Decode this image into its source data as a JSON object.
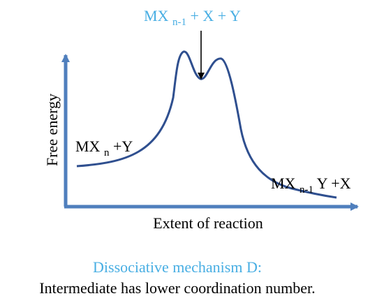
{
  "colors": {
    "axis": "#4f7fbd",
    "curve": "#2f4f8f",
    "highlight": "#48aee3",
    "text": "#000000"
  },
  "diagram": {
    "intermediate": {
      "base": "MX",
      "subscript": "n-1",
      "suffix": " + X + Y"
    },
    "reactant": {
      "base": "MX",
      "subscript": "n",
      "suffix": " +Y"
    },
    "product": {
      "base": "MX",
      "subscript": "n-1",
      "suffix": "Y +X"
    },
    "ylabel": "Free energy",
    "xlabel": "Extent of reaction"
  },
  "caption": {
    "title": "Dissociative mechanism D:",
    "description": "Intermediate has lower coordination number."
  }
}
